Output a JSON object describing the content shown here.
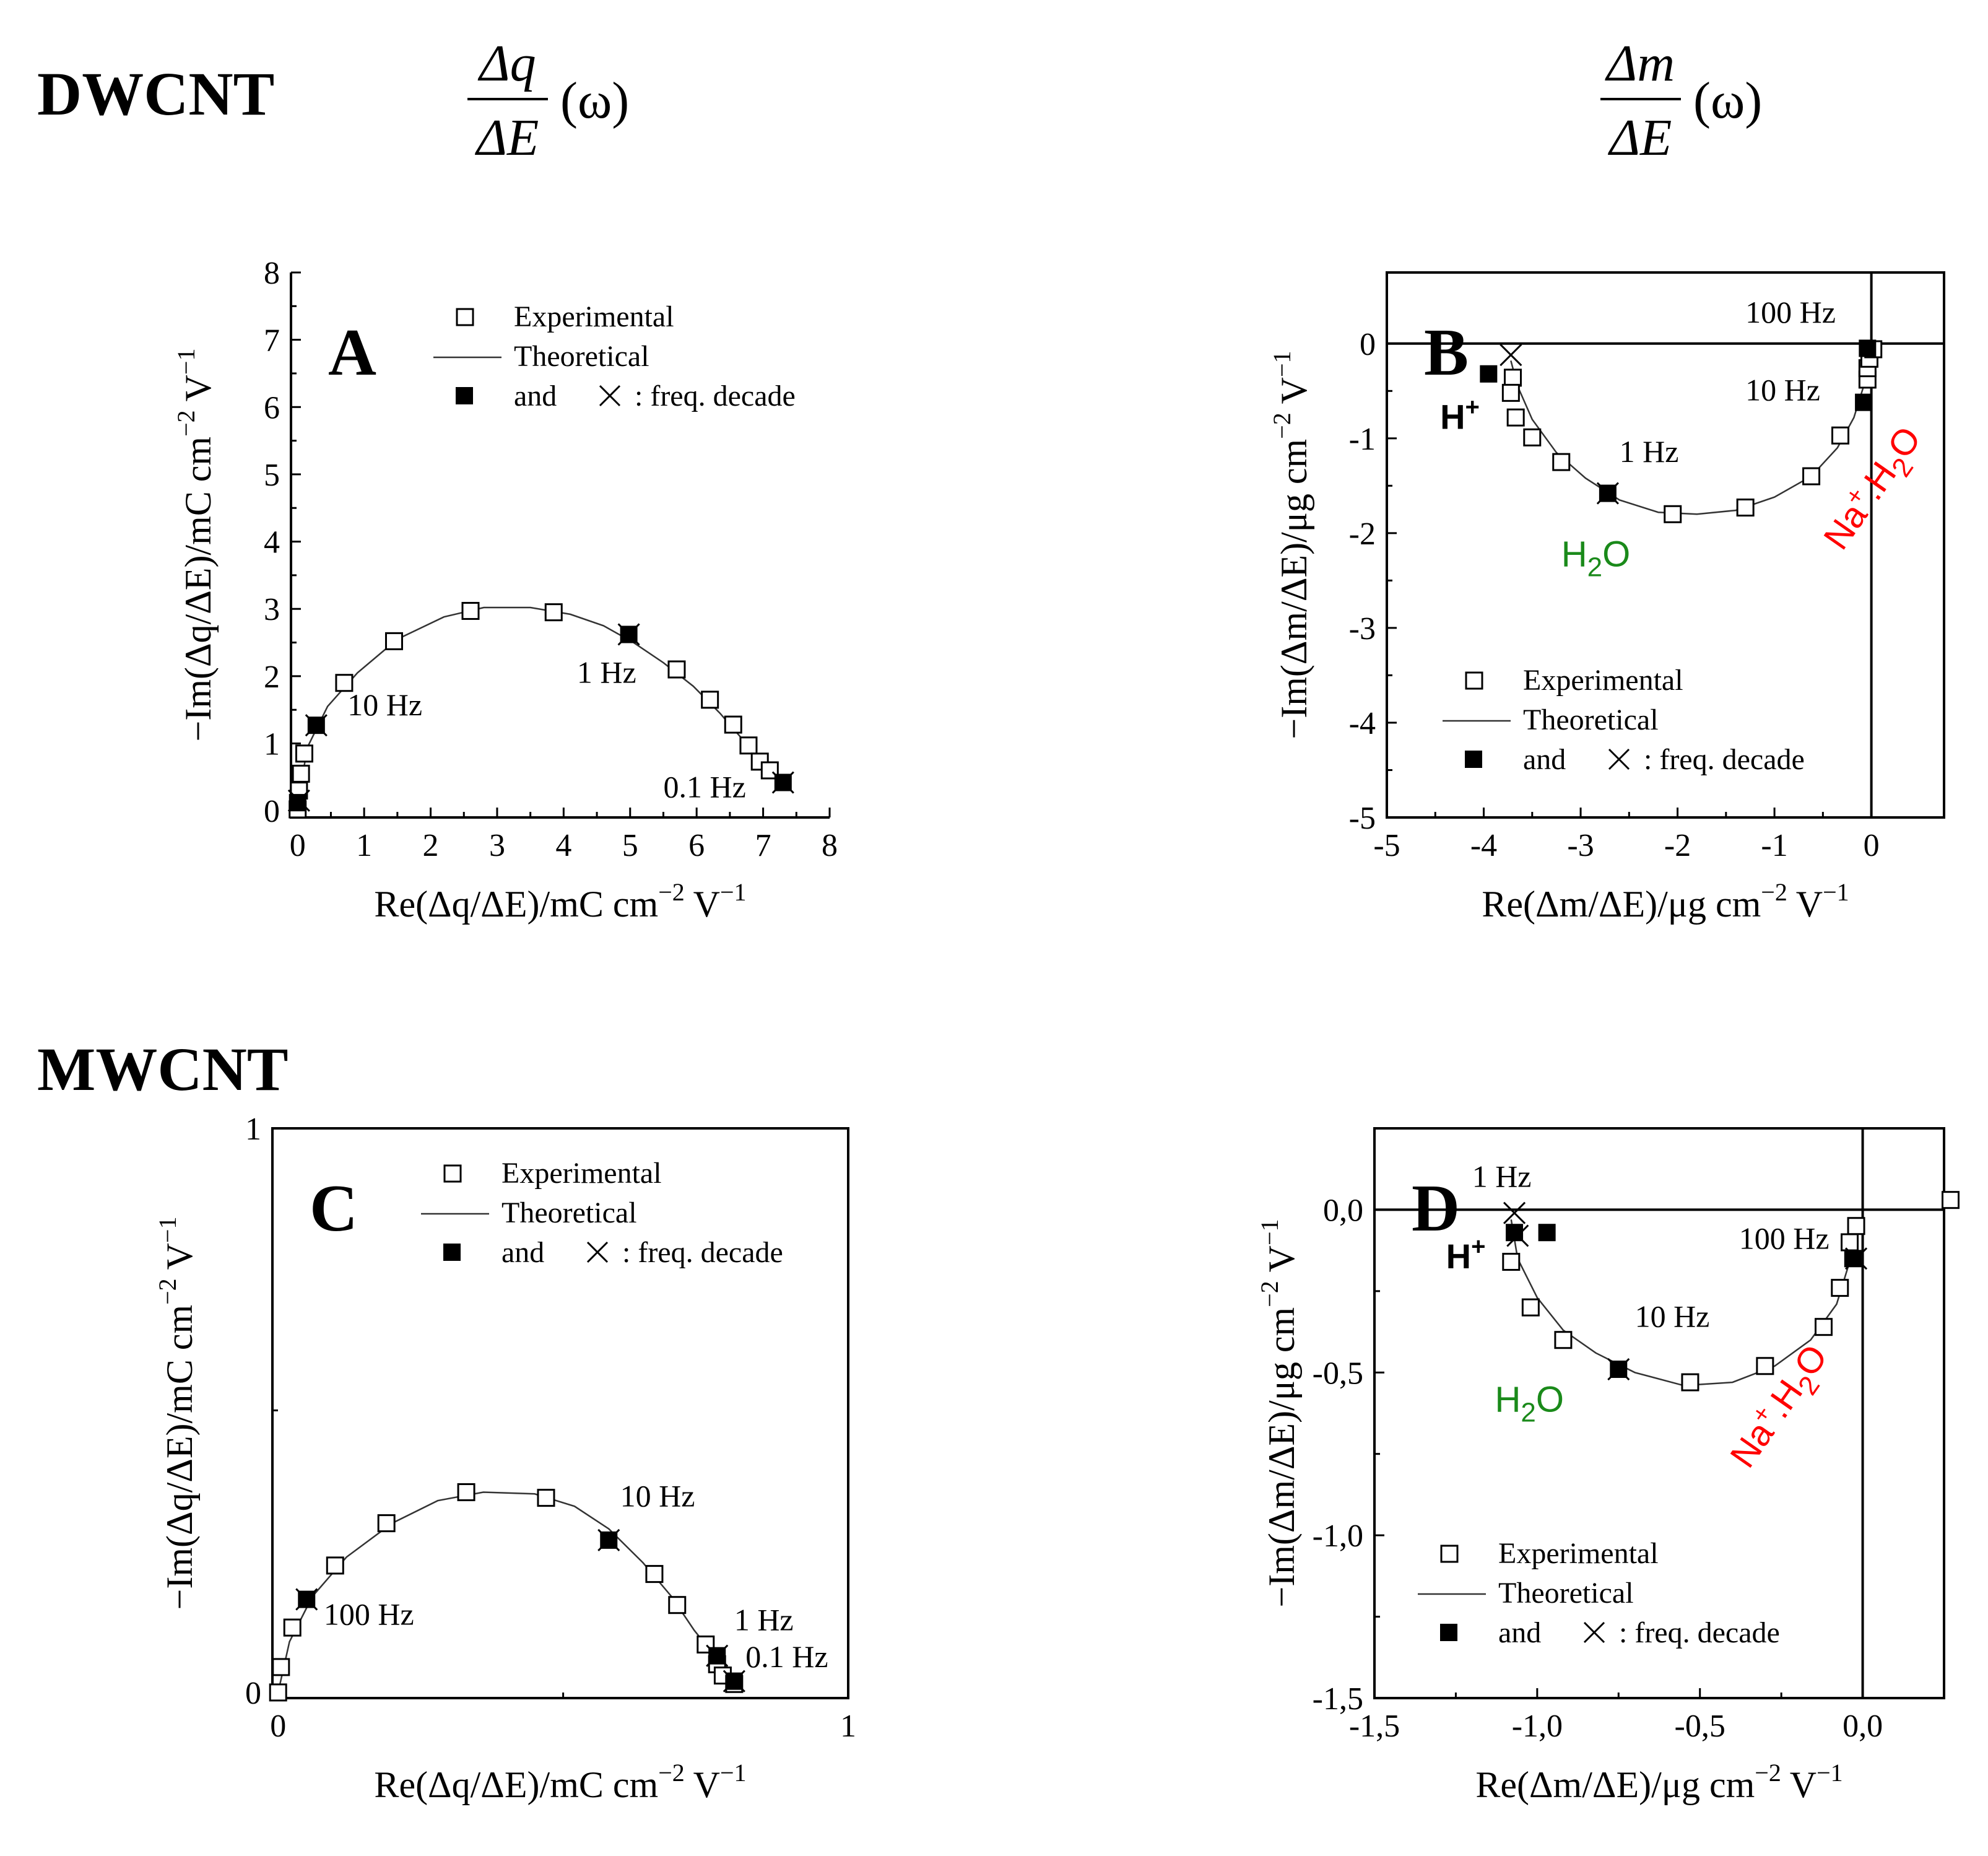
{
  "labels": {
    "row_top": "DWCNT",
    "row_bottom": "MWCNT",
    "left_numerator": "Δq",
    "left_denominator": "ΔE",
    "right_numerator": "Δm",
    "right_denominator": "ΔE",
    "omega_expr": "(ω)"
  },
  "legend": {
    "experimental": "Experimental",
    "theoretical": "Theoretical",
    "decade_and": "and",
    "decade_suffix": ": freq. decade"
  },
  "ions": {
    "h_plus": "H+",
    "water": "H2O",
    "sodium_water": "Na+.H2O",
    "water_color": "#1a8a1a",
    "sodium_color": "#ff0000"
  },
  "chart_data": [
    {
      "panel": "A",
      "type": "scatter",
      "xlabel": "Re(Δq/ΔE)/mC cm−2 V−1",
      "ylabel": "−Im(Δq/ΔE)/mC cm−2 V−1",
      "xlim": [
        -0.1,
        8
      ],
      "ylim": [
        -0.1,
        8
      ],
      "xticks": [
        0,
        1,
        2,
        3,
        4,
        5,
        6,
        7,
        8
      ],
      "yticks": [
        0,
        1,
        2,
        3,
        4,
        5,
        6,
        7,
        8
      ],
      "xtick_labels": [
        "0",
        "1",
        "2",
        "3",
        "4",
        "5",
        "6",
        "7",
        "8"
      ],
      "ytick_labels": [
        "0",
        "1",
        "2",
        "3",
        "4",
        "5",
        "6",
        "7",
        "8"
      ],
      "experimental": [
        [
          0.0,
          0.02
        ],
        [
          0.02,
          0.3
        ],
        [
          0.05,
          0.55
        ],
        [
          0.1,
          0.85
        ],
        [
          0.7,
          1.9
        ],
        [
          1.45,
          2.52
        ],
        [
          2.6,
          2.97
        ],
        [
          3.85,
          2.95
        ],
        [
          5.7,
          2.1
        ],
        [
          6.2,
          1.65
        ],
        [
          6.55,
          1.28
        ],
        [
          6.78,
          0.97
        ],
        [
          6.95,
          0.73
        ],
        [
          7.1,
          0.6
        ]
      ],
      "theoretical": [
        [
          0.0,
          0.0
        ],
        [
          0.05,
          0.4
        ],
        [
          0.15,
          0.95
        ],
        [
          0.45,
          1.55
        ],
        [
          0.9,
          2.05
        ],
        [
          1.5,
          2.55
        ],
        [
          2.2,
          2.88
        ],
        [
          2.8,
          3.02
        ],
        [
          3.5,
          3.02
        ],
        [
          4.1,
          2.92
        ],
        [
          4.6,
          2.75
        ],
        [
          5.05,
          2.5
        ],
        [
          5.5,
          2.2
        ],
        [
          5.95,
          1.85
        ],
        [
          6.35,
          1.45
        ],
        [
          6.7,
          1.05
        ],
        [
          7.0,
          0.7
        ],
        [
          7.25,
          0.48
        ]
      ],
      "decades": [
        [
          0.0,
          0.12
        ],
        [
          0.28,
          1.27
        ],
        [
          4.98,
          2.62
        ],
        [
          7.3,
          0.42
        ]
      ],
      "crosses": [
        [
          0.02,
          0.15
        ],
        [
          0.28,
          1.27
        ],
        [
          4.98,
          2.62
        ],
        [
          7.3,
          0.42
        ]
      ],
      "annotations": [
        {
          "text": "10 Hz",
          "x": 0.75,
          "y": 1.42
        },
        {
          "text": "1 Hz",
          "x": 4.2,
          "y": 1.9
        },
        {
          "text": "0.1 Hz",
          "x": 5.5,
          "y": 0.2
        }
      ],
      "legend_position": "top-right"
    },
    {
      "panel": "B",
      "type": "scatter",
      "xlabel": "Re(Δm/ΔE)/μg cm−2 V−1",
      "ylabel": "−Im(Δm/ΔE)/μg cm−2 V−1",
      "xlim": [
        -5,
        0.75
      ],
      "ylim": [
        -5,
        0.75
      ],
      "xticks": [
        -5,
        -4,
        -3,
        -2,
        -1,
        0
      ],
      "yticks": [
        -5,
        -4,
        -3,
        -2,
        -1,
        0
      ],
      "xtick_labels": [
        "-5",
        "-4",
        "-3",
        "-2",
        "-1",
        "0"
      ],
      "ytick_labels": [
        "-5",
        "-4",
        "-3",
        "-2",
        "-1",
        "0"
      ],
      "experimental": [
        [
          -3.7,
          -0.36
        ],
        [
          -3.72,
          -0.52
        ],
        [
          -3.67,
          -0.78
        ],
        [
          -3.5,
          -0.99
        ],
        [
          -3.2,
          -1.25
        ],
        [
          -2.05,
          -1.8
        ],
        [
          -1.3,
          -1.73
        ],
        [
          -0.62,
          -1.4
        ],
        [
          -0.32,
          -0.97
        ],
        [
          -0.04,
          -0.38
        ],
        [
          -0.04,
          -0.26
        ],
        [
          -0.02,
          -0.16
        ],
        [
          0.02,
          -0.06
        ]
      ],
      "theoretical": [
        [
          -3.72,
          -0.18
        ],
        [
          -3.65,
          -0.45
        ],
        [
          -3.5,
          -0.8
        ],
        [
          -3.25,
          -1.15
        ],
        [
          -2.95,
          -1.42
        ],
        [
          -2.6,
          -1.65
        ],
        [
          -2.2,
          -1.78
        ],
        [
          -1.8,
          -1.8
        ],
        [
          -1.4,
          -1.76
        ],
        [
          -1.0,
          -1.62
        ],
        [
          -0.62,
          -1.4
        ],
        [
          -0.35,
          -1.1
        ],
        [
          -0.18,
          -0.78
        ],
        [
          -0.08,
          -0.45
        ],
        [
          -0.02,
          -0.15
        ]
      ],
      "decades": [
        [
          -3.95,
          -0.32
        ],
        [
          -2.72,
          -1.58
        ],
        [
          -0.08,
          -0.62
        ],
        [
          -0.04,
          -0.05
        ]
      ],
      "crosses": [
        [
          -3.72,
          -0.12
        ],
        [
          -2.72,
          -1.58
        ]
      ],
      "annotations": [
        {
          "text": "100 Hz",
          "x": -1.3,
          "y": 0.22
        },
        {
          "text": "10 Hz",
          "x": -1.3,
          "y": -0.6
        },
        {
          "text": "1 Hz",
          "x": -2.6,
          "y": -1.25
        }
      ],
      "ion_labels": [
        {
          "ion": "H+",
          "x": -4.45,
          "y": -0.9
        },
        {
          "ion": "H2O",
          "x": -3.2,
          "y": -2.35
        },
        {
          "ion": "Na+.H2O",
          "x": -0.3,
          "y": -2.2
        }
      ],
      "legend_position": "bottom-right"
    },
    {
      "panel": "C",
      "type": "scatter",
      "xlabel": "Re(Δq/ΔE)/mC cm−2 V−1",
      "ylabel": "−Im(Δq/ΔE)/mC cm−2 V−1",
      "xlim": [
        -0.01,
        1
      ],
      "ylim": [
        -0.01,
        1
      ],
      "xticks": [
        0,
        1
      ],
      "yticks": [
        0,
        1
      ],
      "xtick_labels": [
        "0",
        "1"
      ],
      "ytick_labels": [
        "0",
        "1"
      ],
      "experimental": [
        [
          0.0,
          0.0
        ],
        [
          0.005,
          0.045
        ],
        [
          0.025,
          0.115
        ],
        [
          0.1,
          0.225
        ],
        [
          0.19,
          0.3
        ],
        [
          0.33,
          0.355
        ],
        [
          0.47,
          0.345
        ],
        [
          0.66,
          0.21
        ],
        [
          0.7,
          0.155
        ],
        [
          0.75,
          0.085
        ],
        [
          0.77,
          0.05
        ],
        [
          0.78,
          0.03
        ],
        [
          0.8,
          0.015
        ]
      ],
      "theoretical": [
        [
          0.0,
          0.0
        ],
        [
          0.02,
          0.09
        ],
        [
          0.06,
          0.17
        ],
        [
          0.12,
          0.24
        ],
        [
          0.2,
          0.3
        ],
        [
          0.28,
          0.34
        ],
        [
          0.36,
          0.355
        ],
        [
          0.45,
          0.352
        ],
        [
          0.52,
          0.33
        ],
        [
          0.58,
          0.29
        ],
        [
          0.64,
          0.23
        ],
        [
          0.69,
          0.17
        ],
        [
          0.73,
          0.11
        ],
        [
          0.77,
          0.06
        ],
        [
          0.8,
          0.02
        ]
      ],
      "decades": [
        [
          0.05,
          0.165
        ],
        [
          0.58,
          0.27
        ],
        [
          0.77,
          0.065
        ],
        [
          0.8,
          0.02
        ]
      ],
      "crosses": [
        [
          0.05,
          0.165
        ],
        [
          0.58,
          0.27
        ],
        [
          0.77,
          0.065
        ],
        [
          0.8,
          0.02
        ]
      ],
      "annotations": [
        {
          "text": "10 Hz",
          "x": 0.6,
          "y": 0.33
        },
        {
          "text": "100 Hz",
          "x": 0.08,
          "y": 0.12
        },
        {
          "text": "1 Hz",
          "x": 0.8,
          "y": 0.11
        },
        {
          "text": "0.1 Hz",
          "x": 0.82,
          "y": 0.045
        }
      ],
      "legend_position": "top-right"
    },
    {
      "panel": "D",
      "type": "scatter",
      "xlabel": "Re(Δm/ΔE)/μg cm−2 V−1",
      "ylabel": "−Im(Δm/ΔE)/μg cm−2 V−1",
      "xlim": [
        -1.5,
        0.25
      ],
      "ylim": [
        -1.5,
        0.25
      ],
      "xticks": [
        -1.5,
        -1.0,
        -0.5,
        0.0
      ],
      "yticks": [
        -1.5,
        -1.0,
        -0.5,
        0.0
      ],
      "xtick_labels": [
        "-1,5",
        "-1,0",
        "-0,5",
        "0,0"
      ],
      "ytick_labels": [
        "-1,5",
        "-1,0",
        "-0,5",
        "0,0"
      ],
      "experimental": [
        [
          -1.08,
          -0.16
        ],
        [
          -1.02,
          -0.3
        ],
        [
          -0.92,
          -0.4
        ],
        [
          -0.53,
          -0.53
        ],
        [
          -0.3,
          -0.48
        ],
        [
          -0.12,
          -0.36
        ],
        [
          -0.07,
          -0.24
        ],
        [
          -0.04,
          -0.1
        ],
        [
          -0.02,
          -0.05
        ],
        [
          0.27,
          0.03
        ]
      ],
      "theoretical": [
        [
          -1.08,
          -0.03
        ],
        [
          -1.06,
          -0.15
        ],
        [
          -1.0,
          -0.27
        ],
        [
          -0.92,
          -0.37
        ],
        [
          -0.82,
          -0.44
        ],
        [
          -0.7,
          -0.5
        ],
        [
          -0.55,
          -0.54
        ],
        [
          -0.4,
          -0.53
        ],
        [
          -0.27,
          -0.48
        ],
        [
          -0.16,
          -0.4
        ],
        [
          -0.08,
          -0.29
        ],
        [
          -0.04,
          -0.16
        ],
        [
          -0.02,
          -0.03
        ]
      ],
      "decades": [
        [
          -1.07,
          -0.07
        ],
        [
          -0.97,
          -0.07
        ],
        [
          -0.75,
          -0.49
        ],
        [
          -0.03,
          -0.15
        ]
      ],
      "crosses": [
        [
          -1.07,
          -0.01
        ],
        [
          -1.06,
          -0.08
        ],
        [
          -0.75,
          -0.49
        ],
        [
          -0.02,
          -0.15
        ]
      ],
      "annotations": [
        {
          "text": "1 Hz",
          "x": -1.2,
          "y": 0.07
        },
        {
          "text": "10 Hz",
          "x": -0.7,
          "y": -0.36
        },
        {
          "text": "100 Hz",
          "x": -0.38,
          "y": -0.12
        }
      ],
      "ion_labels": [
        {
          "ion": "H+",
          "x": -1.28,
          "y": -0.18
        },
        {
          "ion": "H2O",
          "x": -1.13,
          "y": -0.62
        },
        {
          "ion": "Na+.H2O",
          "x": -0.35,
          "y": -0.8
        }
      ],
      "legend_position": "bottom-right"
    }
  ]
}
